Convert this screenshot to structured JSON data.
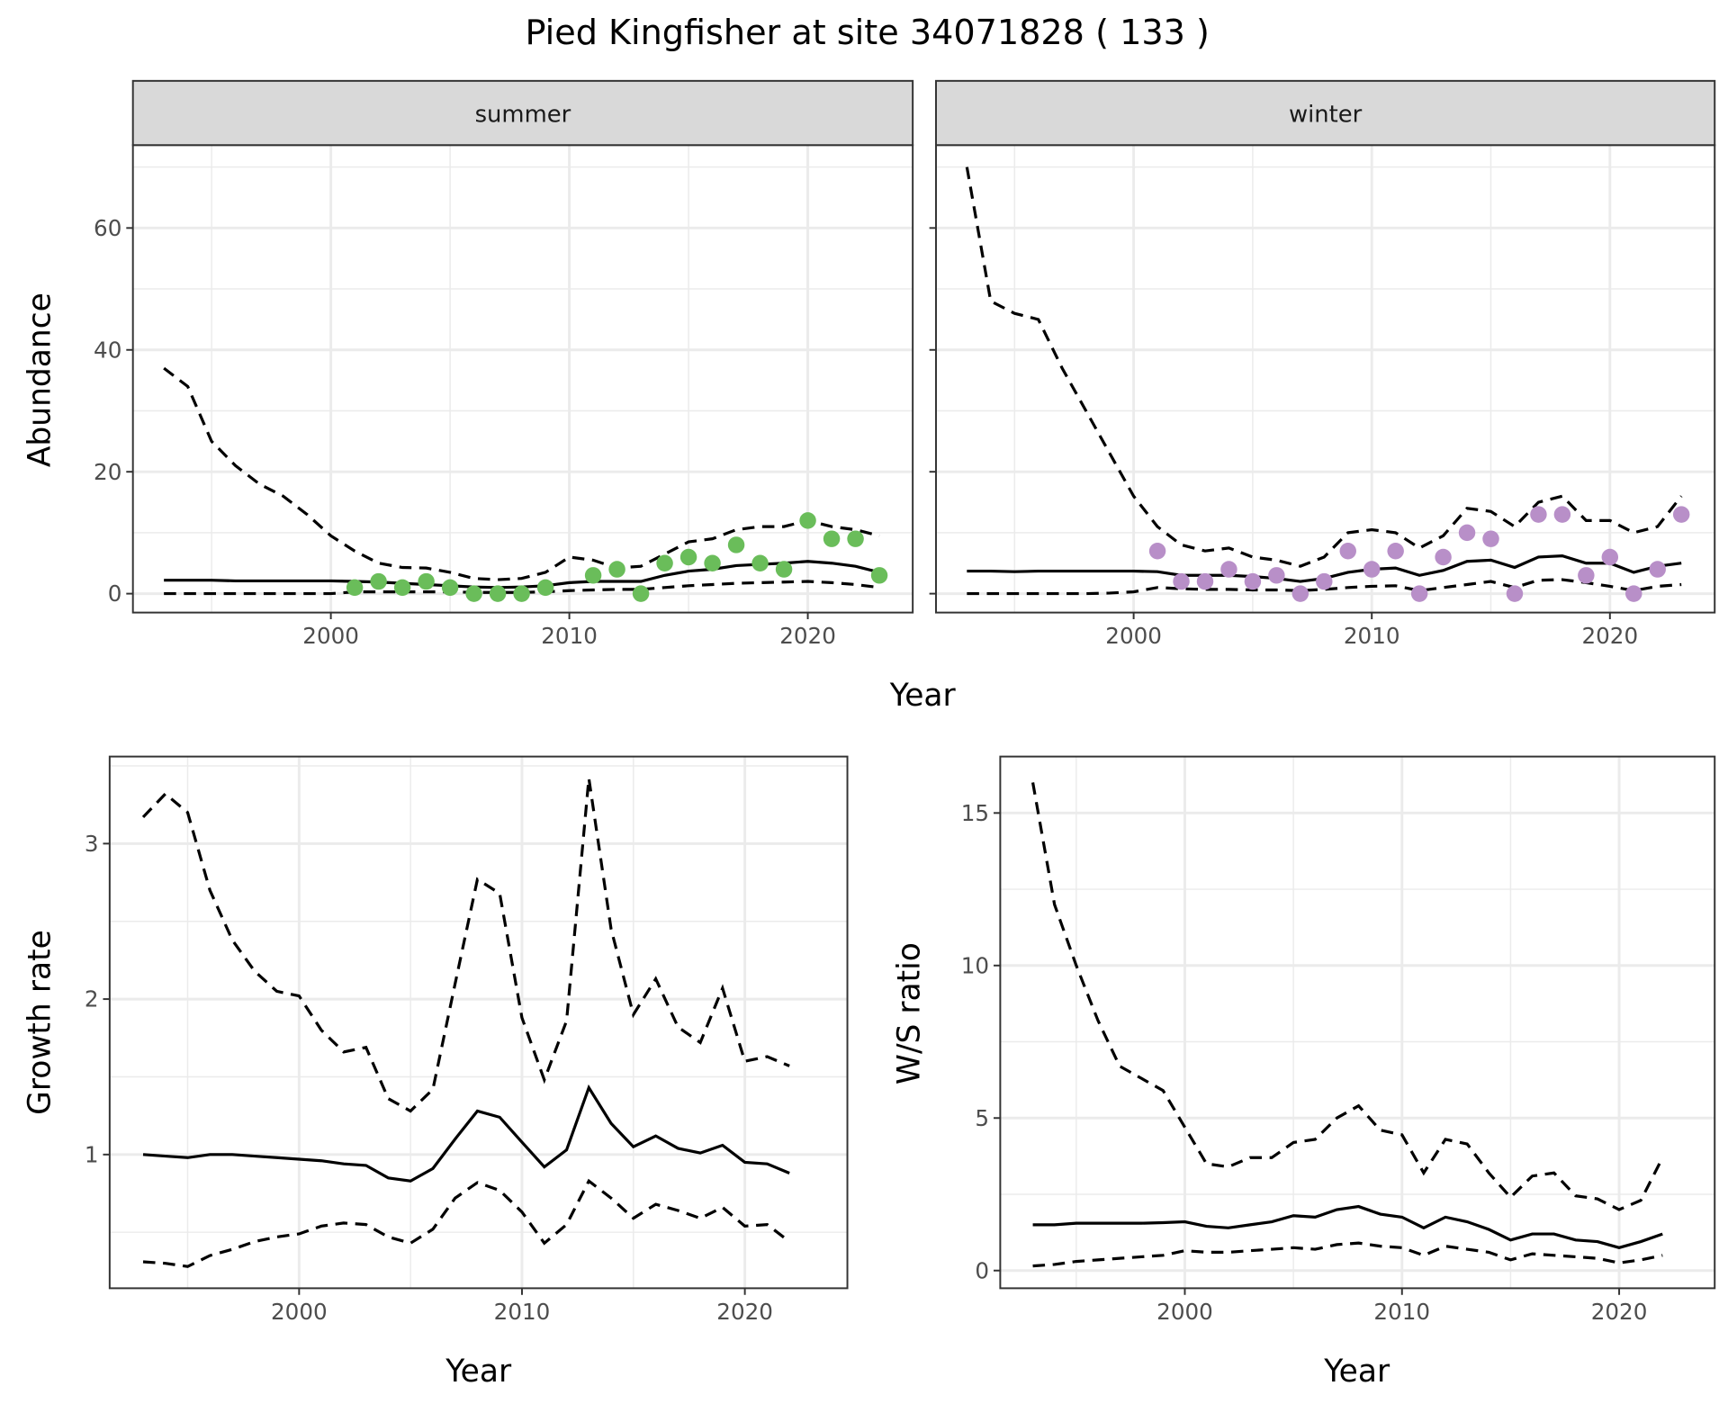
{
  "title": "Pied Kingfisher at site 34071828 ( 133 )",
  "colors": {
    "summer_points": "#6abd5a",
    "winter_points": "#b88fc8",
    "lines": "#000000",
    "grid": "#ebebeb",
    "strip": "#d9d9d9"
  },
  "chart_data": [
    {
      "id": "summer",
      "type": "line+scatter",
      "strip": "summer",
      "xlabel": "Year",
      "ylabel": "Abundance",
      "xlim": [
        1991.7,
        2024.4
      ],
      "ylim": [
        -3.1,
        73.6
      ],
      "x_ticks": [
        2000,
        2010,
        2020
      ],
      "y_ticks": [
        0,
        20,
        40,
        60
      ],
      "grid": true,
      "years": [
        1993,
        1994,
        1995,
        1996,
        1997,
        1998,
        1999,
        2000,
        2001,
        2002,
        2003,
        2004,
        2005,
        2006,
        2007,
        2008,
        2009,
        2010,
        2011,
        2012,
        2013,
        2014,
        2015,
        2016,
        2017,
        2018,
        2019,
        2020,
        2021,
        2022,
        2023
      ],
      "mean": [
        2.2,
        2.2,
        2.2,
        2.1,
        2.1,
        2.1,
        2.1,
        2.1,
        2.0,
        1.9,
        1.7,
        1.5,
        1.3,
        1.1,
        1.0,
        1.1,
        1.3,
        1.8,
        2.0,
        2.0,
        2.0,
        3.0,
        3.7,
        4.0,
        4.6,
        4.8,
        5.0,
        5.3,
        5.0,
        4.5,
        3.5
      ],
      "upper": [
        37,
        34,
        25,
        21,
        18,
        16,
        13,
        9.5,
        7,
        5,
        4.3,
        4.2,
        3.5,
        2.5,
        2.3,
        2.5,
        3.5,
        6,
        5.5,
        4.2,
        4.5,
        6.5,
        8.5,
        9,
        10.5,
        11,
        11,
        12,
        11,
        10.5,
        9.5
      ],
      "lower": [
        0,
        0,
        0,
        0,
        0,
        0,
        0,
        0,
        0.3,
        0.3,
        0.3,
        0.3,
        0.3,
        0.2,
        0.2,
        0.2,
        0.3,
        0.5,
        0.6,
        0.7,
        0.7,
        1.0,
        1.3,
        1.5,
        1.7,
        1.8,
        1.9,
        2.0,
        1.8,
        1.5,
        1.0
      ],
      "points": {
        "x": [
          2001,
          2002,
          2003,
          2004,
          2005,
          2006,
          2007,
          2008,
          2009,
          2011,
          2012,
          2013,
          2014,
          2015,
          2016,
          2017,
          2018,
          2019,
          2020,
          2021,
          2022,
          2023
        ],
        "y": [
          1,
          2,
          1,
          2,
          1,
          0,
          0,
          0,
          1,
          3,
          4,
          0,
          5,
          6,
          5,
          8,
          5,
          4,
          12,
          9,
          9,
          3
        ]
      }
    },
    {
      "id": "winter",
      "type": "line+scatter",
      "strip": "winter",
      "xlabel": "Year",
      "ylabel": "Abundance",
      "xlim": [
        1991.7,
        2024.4
      ],
      "ylim": [
        -3.1,
        73.6
      ],
      "x_ticks": [
        2000,
        2010,
        2020
      ],
      "y_ticks": [
        0,
        20,
        40,
        60
      ],
      "grid": true,
      "years": [
        1993,
        1994,
        1995,
        1996,
        1997,
        1998,
        1999,
        2000,
        2001,
        2002,
        2003,
        2004,
        2005,
        2006,
        2007,
        2008,
        2009,
        2010,
        2011,
        2012,
        2013,
        2014,
        2015,
        2016,
        2017,
        2018,
        2019,
        2020,
        2021,
        2022,
        2023
      ],
      "mean": [
        3.7,
        3.7,
        3.6,
        3.7,
        3.7,
        3.7,
        3.7,
        3.7,
        3.6,
        3.0,
        3.0,
        3.0,
        2.8,
        2.5,
        2.0,
        2.5,
        3.5,
        4.0,
        4.2,
        3.0,
        3.8,
        5.3,
        5.5,
        4.3,
        6.0,
        6.2,
        5.0,
        5.0,
        3.5,
        4.5,
        5.0
      ],
      "upper": [
        70,
        48,
        46,
        45,
        37,
        30,
        23,
        16,
        11,
        8,
        7,
        7.5,
        6,
        5.5,
        4.5,
        6,
        10,
        10.5,
        10,
        7.5,
        9.5,
        14,
        13.5,
        11,
        15,
        16,
        12,
        12,
        10,
        11,
        16
      ],
      "lower": [
        0,
        0,
        0,
        0,
        0,
        0,
        0.1,
        0.3,
        1.0,
        0.8,
        0.7,
        0.7,
        0.6,
        0.6,
        0.5,
        0.7,
        1.0,
        1.2,
        1.3,
        0.5,
        1.0,
        1.5,
        2.0,
        1.0,
        2.2,
        2.3,
        1.8,
        1.2,
        0.5,
        1.2,
        1.5
      ],
      "points": {
        "x": [
          2001,
          2002,
          2003,
          2004,
          2005,
          2006,
          2007,
          2008,
          2009,
          2010,
          2011,
          2012,
          2013,
          2014,
          2015,
          2016,
          2017,
          2018,
          2019,
          2020,
          2021,
          2022,
          2023
        ],
        "y": [
          7,
          2,
          2,
          4,
          2,
          3,
          0,
          2,
          7,
          4,
          7,
          0,
          6,
          10,
          9,
          0,
          13,
          13,
          3,
          6,
          0,
          4,
          13
        ]
      }
    },
    {
      "id": "growth",
      "type": "line",
      "xlabel": "Year",
      "ylabel": "Growth rate",
      "xlim": [
        1991.5,
        2024.6
      ],
      "ylim": [
        0.14,
        3.56
      ],
      "x_ticks": [
        2000,
        2010,
        2020
      ],
      "y_ticks": [
        1,
        2,
        3
      ],
      "grid": true,
      "years": [
        1993,
        1994,
        1995,
        1996,
        1997,
        1998,
        1999,
        2000,
        2001,
        2002,
        2003,
        2004,
        2005,
        2006,
        2007,
        2008,
        2009,
        2010,
        2011,
        2012,
        2013,
        2014,
        2015,
        2016,
        2017,
        2018,
        2019,
        2020,
        2021,
        2022
      ],
      "mean": [
        1.0,
        0.99,
        0.98,
        1.0,
        1.0,
        0.99,
        0.98,
        0.97,
        0.96,
        0.94,
        0.93,
        0.85,
        0.83,
        0.91,
        1.1,
        1.28,
        1.24,
        1.08,
        0.92,
        1.03,
        1.43,
        1.2,
        1.05,
        1.12,
        1.04,
        1.01,
        1.06,
        0.95,
        0.94,
        0.88
      ],
      "upper": [
        3.17,
        3.32,
        3.2,
        2.7,
        2.38,
        2.18,
        2.05,
        2.02,
        1.8,
        1.66,
        1.69,
        1.36,
        1.28,
        1.42,
        2.1,
        2.77,
        2.68,
        1.88,
        1.48,
        1.86,
        3.42,
        2.45,
        1.9,
        2.13,
        1.82,
        1.72,
        2.07,
        1.6,
        1.63,
        1.57
      ],
      "lower": [
        0.31,
        0.3,
        0.28,
        0.35,
        0.39,
        0.44,
        0.47,
        0.49,
        0.54,
        0.56,
        0.55,
        0.47,
        0.43,
        0.52,
        0.72,
        0.82,
        0.77,
        0.63,
        0.43,
        0.55,
        0.83,
        0.72,
        0.59,
        0.68,
        0.64,
        0.59,
        0.66,
        0.54,
        0.55,
        0.44
      ]
    },
    {
      "id": "ws",
      "type": "line",
      "xlabel": "Year",
      "ylabel": "W/S ratio",
      "xlim": [
        1991.5,
        2024.4
      ],
      "ylim": [
        -0.58,
        16.85
      ],
      "x_ticks": [
        2000,
        2010,
        2020
      ],
      "y_ticks": [
        0,
        5,
        10,
        15
      ],
      "grid": true,
      "years": [
        1993,
        1994,
        1995,
        1996,
        1997,
        1998,
        1999,
        2000,
        2001,
        2002,
        2003,
        2004,
        2005,
        2006,
        2007,
        2008,
        2009,
        2010,
        2011,
        2012,
        2013,
        2014,
        2015,
        2016,
        2017,
        2018,
        2019,
        2020,
        2021,
        2022
      ],
      "mean": [
        1.5,
        1.5,
        1.55,
        1.55,
        1.55,
        1.55,
        1.57,
        1.6,
        1.45,
        1.4,
        1.5,
        1.6,
        1.8,
        1.75,
        2.0,
        2.1,
        1.85,
        1.75,
        1.4,
        1.75,
        1.6,
        1.35,
        1.0,
        1.2,
        1.2,
        1.0,
        0.95,
        0.75,
        0.95,
        1.2
      ],
      "upper": [
        16,
        12,
        10,
        8.2,
        6.7,
        6.3,
        5.9,
        4.7,
        3.5,
        3.4,
        3.7,
        3.7,
        4.2,
        4.3,
        5.0,
        5.4,
        4.6,
        4.45,
        3.2,
        4.3,
        4.15,
        3.2,
        2.4,
        3.1,
        3.2,
        2.45,
        2.35,
        2.0,
        2.3,
        3.7
      ],
      "lower": [
        0.15,
        0.2,
        0.3,
        0.35,
        0.4,
        0.45,
        0.5,
        0.65,
        0.6,
        0.6,
        0.65,
        0.7,
        0.75,
        0.7,
        0.85,
        0.9,
        0.8,
        0.75,
        0.5,
        0.8,
        0.7,
        0.6,
        0.35,
        0.55,
        0.5,
        0.45,
        0.4,
        0.25,
        0.35,
        0.5
      ]
    }
  ]
}
